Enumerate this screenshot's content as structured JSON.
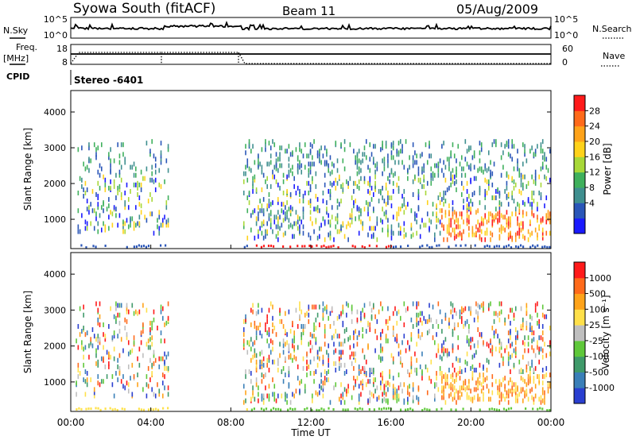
{
  "header": {
    "station": "Syowa South (fitACF)",
    "beam": "Beam 11",
    "date": "05/Aug/2009"
  },
  "top_panels": {
    "nsky_label": "N.Sky",
    "nsky_ticks": [
      "10^5",
      "10^0"
    ],
    "nsearch_label": "N.Search",
    "nsearch_ticks": [
      "10^5",
      "10^0"
    ],
    "freq_label_top": "Freq.",
    "freq_label_unit": "[MHz]",
    "freq_ticks": [
      "18",
      "8"
    ],
    "nave_label": "Nave",
    "nave_ticks": [
      "60",
      "0"
    ],
    "cpid_label": "CPID",
    "cpid_value": "Stereo -6401"
  },
  "chart_data": [
    {
      "type": "heatmap",
      "panel": "power",
      "x_ticks": [
        "00:00",
        "04:00",
        "08:00",
        "12:00",
        "16:00",
        "20:00",
        "00:00"
      ],
      "xlim_hours": [
        0,
        24
      ],
      "ylabel": "Slant Range [km]",
      "y_ticks": [
        1000,
        2000,
        3000,
        4000
      ],
      "ylim": [
        180,
        4600
      ],
      "colorbar_label": "Power [dB]",
      "colorbar_ticks": [
        "28",
        "24",
        "20",
        "16",
        "12",
        "8",
        "4"
      ],
      "colorbar_colors": [
        "#1a1aff",
        "#2a56b8",
        "#3f8f8f",
        "#3fb05c",
        "#a8d838",
        "#ffd21a",
        "#ffa31a",
        "#ff6a1a",
        "#ff1a1a"
      ],
      "data_gap_hours": [
        4.9,
        8.6
      ],
      "echo_regions": [
        {
          "t": [
            0.2,
            4.9
          ],
          "r": [
            2400,
            3200
          ],
          "density": 0.2
        },
        {
          "t": [
            0.2,
            4.9
          ],
          "r": [
            600,
            2400
          ],
          "density": 0.25
        },
        {
          "t": [
            8.6,
            24
          ],
          "r": [
            1500,
            3200
          ],
          "density": 0.28
        },
        {
          "t": [
            8.6,
            24
          ],
          "r": [
            400,
            1500
          ],
          "density": 0.3
        },
        {
          "t": [
            18.5,
            24
          ],
          "r": [
            500,
            1200
          ],
          "density": 0.6
        }
      ]
    },
    {
      "type": "heatmap",
      "panel": "velocity",
      "x_ticks": [
        "00:00",
        "04:00",
        "08:00",
        "12:00",
        "16:00",
        "20:00",
        "00:00"
      ],
      "xlim_hours": [
        0,
        24
      ],
      "ylabel": "Slant Range [km]",
      "y_ticks": [
        1000,
        2000,
        3000,
        4000
      ],
      "ylim": [
        180,
        4600
      ],
      "colorbar_label": "Velocity [m s⁻¹]",
      "colorbar_ticks": [
        "1000",
        "500",
        "100",
        "25",
        "-25",
        "-100",
        "-500",
        "-1000"
      ],
      "colorbar_colors": [
        "#2a3fd0",
        "#3a7fb8",
        "#3f9a6a",
        "#5fc83a",
        "#bfbfbf",
        "#ffe04a",
        "#ffa31a",
        "#ff6a1a",
        "#ff1a1a"
      ],
      "data_gap_hours": [
        4.9,
        8.6
      ],
      "xlabel": "Time UT"
    }
  ]
}
